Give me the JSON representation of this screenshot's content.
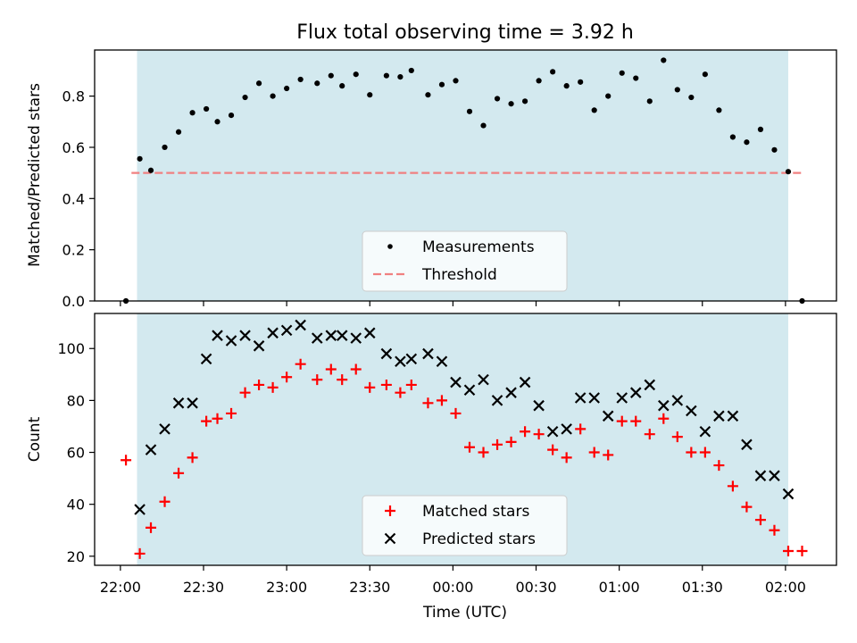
{
  "title": "Flux total observing time = 3.92 h",
  "colors": {
    "observing_window": "#d3e9ef",
    "measurement": "#000000",
    "threshold": "#f08080",
    "matched": "#ff0000",
    "predicted": "#000000"
  },
  "chart_data": [
    {
      "type": "scatter",
      "ylabel": "Matched/Predicted stars",
      "ylim": [
        0,
        0.98
      ],
      "yticks": [
        "0.0",
        "0.2",
        "0.4",
        "0.6",
        "0.8"
      ],
      "observing_window": {
        "start": "22:06",
        "end": "02:01"
      },
      "legend_position": "lower-center",
      "legend": [
        "Measurements",
        "Threshold"
      ],
      "threshold": {
        "value": 0.5,
        "x_from": "22:04",
        "x_to": "02:06"
      },
      "series": [
        {
          "name": "Measurements",
          "marker": "dot",
          "points": [
            [
              "22:02",
              0.0
            ],
            [
              "22:07",
              0.555
            ],
            [
              "22:11",
              0.51
            ],
            [
              "22:16",
              0.6
            ],
            [
              "22:21",
              0.66
            ],
            [
              "22:26",
              0.735
            ],
            [
              "22:31",
              0.75
            ],
            [
              "22:35",
              0.7
            ],
            [
              "22:40",
              0.725
            ],
            [
              "22:45",
              0.795
            ],
            [
              "22:50",
              0.85
            ],
            [
              "22:55",
              0.8
            ],
            [
              "23:00",
              0.83
            ],
            [
              "23:05",
              0.865
            ],
            [
              "23:11",
              0.85
            ],
            [
              "23:16",
              0.88
            ],
            [
              "23:20",
              0.84
            ],
            [
              "23:25",
              0.885
            ],
            [
              "23:30",
              0.805
            ],
            [
              "23:36",
              0.88
            ],
            [
              "23:41",
              0.875
            ],
            [
              "23:45",
              0.9
            ],
            [
              "23:51",
              0.805
            ],
            [
              "23:56",
              0.845
            ],
            [
              "00:01",
              0.86
            ],
            [
              "00:06",
              0.74
            ],
            [
              "00:11",
              0.685
            ],
            [
              "00:16",
              0.79
            ],
            [
              "00:21",
              0.77
            ],
            [
              "00:26",
              0.78
            ],
            [
              "00:31",
              0.86
            ],
            [
              "00:36",
              0.895
            ],
            [
              "00:41",
              0.84
            ],
            [
              "00:46",
              0.855
            ],
            [
              "00:51",
              0.745
            ],
            [
              "00:56",
              0.8
            ],
            [
              "01:01",
              0.89
            ],
            [
              "01:06",
              0.87
            ],
            [
              "01:11",
              0.78
            ],
            [
              "01:16",
              0.94
            ],
            [
              "01:21",
              0.825
            ],
            [
              "01:26",
              0.795
            ],
            [
              "01:31",
              0.885
            ],
            [
              "01:36",
              0.745
            ],
            [
              "01:41",
              0.64
            ],
            [
              "01:46",
              0.62
            ],
            [
              "01:51",
              0.67
            ],
            [
              "01:56",
              0.59
            ],
            [
              "02:01",
              0.505
            ],
            [
              "02:06",
              0.0
            ]
          ]
        }
      ]
    },
    {
      "type": "scatter",
      "xlabel": "Time (UTC)",
      "ylabel": "Count",
      "ylim": [
        16.5,
        113.5
      ],
      "yticks": [
        "20",
        "40",
        "60",
        "80",
        "100"
      ],
      "xticks": [
        "22:00",
        "22:30",
        "23:00",
        "23:30",
        "00:00",
        "00:30",
        "01:00",
        "01:30",
        "02:00"
      ],
      "observing_window": {
        "start": "22:06",
        "end": "02:01"
      },
      "legend_position": "lower-center",
      "legend": [
        "Matched stars",
        "Predicted stars"
      ],
      "series": [
        {
          "name": "Matched stars",
          "marker": "plus",
          "points": [
            [
              "22:02",
              57
            ],
            [
              "22:07",
              21
            ],
            [
              "22:11",
              31
            ],
            [
              "22:16",
              41
            ],
            [
              "22:21",
              52
            ],
            [
              "22:26",
              58
            ],
            [
              "22:31",
              72
            ],
            [
              "22:35",
              73
            ],
            [
              "22:40",
              75
            ],
            [
              "22:45",
              83
            ],
            [
              "22:50",
              86
            ],
            [
              "22:55",
              85
            ],
            [
              "23:00",
              89
            ],
            [
              "23:05",
              94
            ],
            [
              "23:11",
              88
            ],
            [
              "23:16",
              92
            ],
            [
              "23:20",
              88
            ],
            [
              "23:25",
              92
            ],
            [
              "23:30",
              85
            ],
            [
              "23:36",
              86
            ],
            [
              "23:41",
              83
            ],
            [
              "23:45",
              86
            ],
            [
              "23:51",
              79
            ],
            [
              "23:56",
              80
            ],
            [
              "00:01",
              75
            ],
            [
              "00:06",
              62
            ],
            [
              "00:11",
              60
            ],
            [
              "00:16",
              63
            ],
            [
              "00:21",
              64
            ],
            [
              "00:26",
              68
            ],
            [
              "00:31",
              67
            ],
            [
              "00:36",
              61
            ],
            [
              "00:41",
              58
            ],
            [
              "00:46",
              69
            ],
            [
              "00:51",
              60
            ],
            [
              "00:56",
              59
            ],
            [
              "01:01",
              72
            ],
            [
              "01:06",
              72
            ],
            [
              "01:11",
              67
            ],
            [
              "01:16",
              73
            ],
            [
              "01:21",
              66
            ],
            [
              "01:26",
              60
            ],
            [
              "01:31",
              60
            ],
            [
              "01:36",
              55
            ],
            [
              "01:41",
              47
            ],
            [
              "01:46",
              39
            ],
            [
              "01:51",
              34
            ],
            [
              "01:56",
              30
            ],
            [
              "02:01",
              22
            ],
            [
              "02:06",
              22
            ]
          ]
        },
        {
          "name": "Predicted stars",
          "marker": "x",
          "points": [
            [
              "22:07",
              38
            ],
            [
              "22:11",
              61
            ],
            [
              "22:16",
              69
            ],
            [
              "22:21",
              79
            ],
            [
              "22:26",
              79
            ],
            [
              "22:31",
              96
            ],
            [
              "22:35",
              105
            ],
            [
              "22:40",
              103
            ],
            [
              "22:45",
              105
            ],
            [
              "22:50",
              101
            ],
            [
              "22:55",
              106
            ],
            [
              "23:00",
              107
            ],
            [
              "23:05",
              109
            ],
            [
              "23:11",
              104
            ],
            [
              "23:16",
              105
            ],
            [
              "23:20",
              105
            ],
            [
              "23:25",
              104
            ],
            [
              "23:30",
              106
            ],
            [
              "23:36",
              98
            ],
            [
              "23:41",
              95
            ],
            [
              "23:45",
              96
            ],
            [
              "23:51",
              98
            ],
            [
              "23:56",
              95
            ],
            [
              "00:01",
              87
            ],
            [
              "00:06",
              84
            ],
            [
              "00:11",
              88
            ],
            [
              "00:16",
              80
            ],
            [
              "00:21",
              83
            ],
            [
              "00:26",
              87
            ],
            [
              "00:31",
              78
            ],
            [
              "00:36",
              68
            ],
            [
              "00:41",
              69
            ],
            [
              "00:46",
              81
            ],
            [
              "00:51",
              81
            ],
            [
              "00:56",
              74
            ],
            [
              "01:01",
              81
            ],
            [
              "01:06",
              83
            ],
            [
              "01:11",
              86
            ],
            [
              "01:16",
              78
            ],
            [
              "01:21",
              80
            ],
            [
              "01:26",
              76
            ],
            [
              "01:31",
              68
            ],
            [
              "01:36",
              74
            ],
            [
              "01:41",
              74
            ],
            [
              "01:46",
              63
            ],
            [
              "01:51",
              51
            ],
            [
              "01:56",
              51
            ],
            [
              "02:01",
              44
            ]
          ]
        }
      ]
    }
  ]
}
